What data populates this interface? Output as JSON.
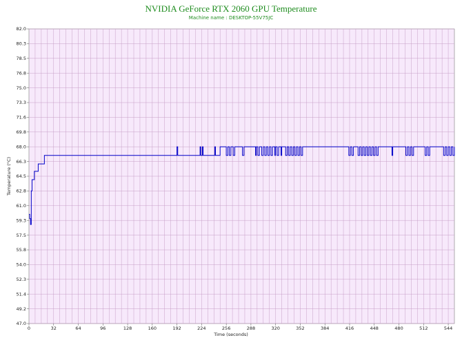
{
  "chart_data": {
    "type": "line",
    "title": "NVIDIA GeForce RTX 2060 GPU Temperature",
    "subtitle": "Machine name : DESKTOP-55V75JC",
    "xlabel": "Time (seconds)",
    "ylabel": "Temperature (°C)",
    "xlim": [
      0,
      552
    ],
    "ylim": [
      47.0,
      82.0
    ],
    "x_ticks": [
      0,
      32,
      64,
      96,
      128,
      160,
      192,
      224,
      256,
      288,
      320,
      352,
      384,
      416,
      448,
      480,
      512,
      544
    ],
    "y_ticks": [
      "47.0",
      "49.2",
      "51.4",
      "52.3",
      "54.0",
      "55.8",
      "57.5",
      "59.3",
      "61.0",
      "62.8",
      "64.5",
      "66.3",
      "68.0",
      "69.8",
      "71.6",
      "73.3",
      "75.0",
      "76.8",
      "78.5",
      "80.3",
      "82.0"
    ],
    "grid": true,
    "colors": {
      "line": "#0000c8",
      "plot_bg": "#f7e9fb",
      "grid": "#c79ec7",
      "title": "#1e8c1e"
    },
    "series": [
      {
        "values": [
          [
            0,
            60.0
          ],
          [
            1,
            59.5
          ],
          [
            2,
            58.8
          ],
          [
            3,
            62.8
          ],
          [
            4,
            64.1
          ],
          [
            7,
            65.1
          ],
          [
            12,
            66.0
          ],
          [
            20,
            67.0
          ],
          [
            191,
            67.0
          ],
          [
            192,
            68.0
          ],
          [
            193,
            67.0
          ],
          [
            221,
            67.0
          ],
          [
            222,
            68.0
          ],
          [
            223,
            67.0
          ],
          [
            225,
            68.0
          ],
          [
            226,
            67.0
          ],
          [
            240,
            67.0
          ],
          [
            241,
            68.0
          ],
          [
            242,
            67.0
          ],
          [
            247,
            67.0
          ],
          [
            248,
            68.0
          ],
          [
            255,
            68.0
          ],
          [
            256,
            67.0
          ],
          [
            258,
            68.0
          ],
          [
            260,
            67.0
          ],
          [
            262,
            68.0
          ],
          [
            265,
            67.0
          ],
          [
            267,
            68.0
          ],
          [
            276,
            68.0
          ],
          [
            277,
            67.0
          ],
          [
            279,
            68.0
          ],
          [
            293,
            68.0
          ],
          [
            294,
            67.0
          ],
          [
            295,
            68.0
          ],
          [
            297,
            67.0
          ],
          [
            299,
            68.0
          ],
          [
            302,
            67.0
          ],
          [
            304,
            68.0
          ],
          [
            306,
            67.0
          ],
          [
            308,
            68.0
          ],
          [
            310,
            67.0
          ],
          [
            312,
            68.0
          ],
          [
            314,
            67.0
          ],
          [
            316,
            68.0
          ],
          [
            319,
            67.0
          ],
          [
            320,
            68.0
          ],
          [
            322,
            67.0
          ],
          [
            324,
            68.0
          ],
          [
            327,
            67.0
          ],
          [
            328,
            68.0
          ],
          [
            332,
            68.0
          ],
          [
            333,
            67.0
          ],
          [
            335,
            68.0
          ],
          [
            337,
            67.0
          ],
          [
            339,
            68.0
          ],
          [
            341,
            67.0
          ],
          [
            343,
            68.0
          ],
          [
            345,
            67.0
          ],
          [
            347,
            68.0
          ],
          [
            349,
            67.0
          ],
          [
            351,
            68.0
          ],
          [
            353,
            67.0
          ],
          [
            355,
            68.0
          ],
          [
            414,
            68.0
          ],
          [
            415,
            67.0
          ],
          [
            417,
            68.0
          ],
          [
            419,
            67.0
          ],
          [
            421,
            68.0
          ],
          [
            426,
            68.0
          ],
          [
            427,
            67.0
          ],
          [
            429,
            68.0
          ],
          [
            431,
            67.0
          ],
          [
            433,
            68.0
          ],
          [
            435,
            67.0
          ],
          [
            437,
            68.0
          ],
          [
            439,
            67.0
          ],
          [
            441,
            68.0
          ],
          [
            443,
            67.0
          ],
          [
            445,
            68.0
          ],
          [
            447,
            67.0
          ],
          [
            449,
            68.0
          ],
          [
            451,
            67.0
          ],
          [
            453,
            68.0
          ],
          [
            470,
            68.0
          ],
          [
            471,
            67.0
          ],
          [
            472,
            68.0
          ],
          [
            488,
            68.0
          ],
          [
            489,
            67.0
          ],
          [
            491,
            68.0
          ],
          [
            493,
            67.0
          ],
          [
            495,
            68.0
          ],
          [
            497,
            67.0
          ],
          [
            499,
            68.0
          ],
          [
            513,
            68.0
          ],
          [
            514,
            67.0
          ],
          [
            516,
            68.0
          ],
          [
            518,
            67.0
          ],
          [
            520,
            68.0
          ],
          [
            537,
            68.0
          ],
          [
            538,
            67.0
          ],
          [
            540,
            68.0
          ],
          [
            542,
            67.0
          ],
          [
            544,
            68.0
          ],
          [
            546,
            67.0
          ],
          [
            548,
            68.0
          ],
          [
            550,
            67.0
          ],
          [
            552,
            68.0
          ]
        ]
      }
    ]
  }
}
